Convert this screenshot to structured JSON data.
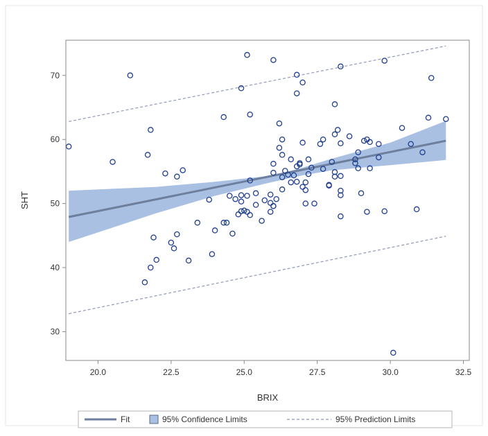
{
  "colors": {
    "fit_line": "#6d7f9c",
    "confidence_fill": "#a9c0e3",
    "prediction_line": "#8e96b8",
    "marker_stroke": "#1f3f8f",
    "frame": "#888888"
  },
  "legend": {
    "position": "bottom",
    "items": [
      {
        "label": "Fit",
        "symbol": "line"
      },
      {
        "label": "95% Confidence Limits",
        "symbol": "band"
      },
      {
        "label": "95% Prediction Limits",
        "symbol": "dashed-line"
      }
    ]
  },
  "chart_data": {
    "type": "scatter",
    "title": "",
    "xlabel": "BRIX",
    "ylabel": "SHT",
    "xlim": [
      18.9,
      32.7
    ],
    "ylim": [
      25.5,
      75.5
    ],
    "xticks": [
      20.0,
      22.5,
      25.0,
      27.5,
      30.0,
      32.5
    ],
    "yticks": [
      30,
      40,
      50,
      60,
      70
    ],
    "xtick_labels": [
      "20.0",
      "22.5",
      "25.0",
      "27.5",
      "30.0",
      "32.5"
    ],
    "ytick_labels": [
      "30",
      "40",
      "50",
      "60",
      "70"
    ],
    "grid": false,
    "fit": {
      "x_range": [
        19.0,
        31.9
      ],
      "y_start": 47.9,
      "y_end": 59.8
    },
    "confidence_band": {
      "x": [
        19.0,
        22.0,
        24.0,
        26.0,
        27.0,
        28.0,
        30.0,
        31.9
      ],
      "upper": [
        52.0,
        52.6,
        53.4,
        54.4,
        55.6,
        57.0,
        59.5,
        62.9
      ],
      "lower": [
        44.0,
        48.5,
        51.2,
        53.4,
        54.4,
        55.2,
        56.0,
        56.8
      ]
    },
    "prediction_limits": {
      "x": [
        19.0,
        31.9
      ],
      "upper": [
        62.8,
        74.6
      ],
      "lower": [
        32.8,
        44.9
      ]
    },
    "points": [
      [
        19.0,
        58.9
      ],
      [
        20.5,
        56.5
      ],
      [
        21.1,
        70.0
      ],
      [
        21.6,
        37.7
      ],
      [
        21.7,
        57.6
      ],
      [
        21.8,
        61.5
      ],
      [
        21.8,
        40.0
      ],
      [
        21.9,
        44.7
      ],
      [
        22.0,
        41.2
      ],
      [
        22.3,
        54.7
      ],
      [
        22.5,
        43.9
      ],
      [
        22.6,
        43.0
      ],
      [
        22.7,
        54.2
      ],
      [
        22.7,
        45.2
      ],
      [
        22.9,
        55.2
      ],
      [
        23.1,
        41.1
      ],
      [
        23.4,
        47.0
      ],
      [
        23.8,
        50.6
      ],
      [
        23.9,
        42.1
      ],
      [
        24.0,
        45.8
      ],
      [
        24.3,
        47.0
      ],
      [
        24.3,
        63.5
      ],
      [
        24.4,
        47.0
      ],
      [
        24.5,
        51.2
      ],
      [
        24.6,
        45.3
      ],
      [
        24.7,
        50.7
      ],
      [
        24.8,
        48.3
      ],
      [
        24.9,
        48.8
      ],
      [
        24.9,
        50.3
      ],
      [
        24.9,
        51.3
      ],
      [
        24.9,
        68.0
      ],
      [
        25.0,
        48.9
      ],
      [
        25.1,
        51.2
      ],
      [
        25.1,
        48.7
      ],
      [
        25.1,
        73.2
      ],
      [
        25.2,
        48.2
      ],
      [
        25.2,
        63.9
      ],
      [
        25.2,
        53.6
      ],
      [
        25.4,
        49.8
      ],
      [
        25.4,
        51.6
      ],
      [
        25.6,
        47.3
      ],
      [
        25.7,
        50.5
      ],
      [
        25.9,
        51.4
      ],
      [
        25.9,
        48.7
      ],
      [
        25.9,
        50.1
      ],
      [
        26.0,
        49.6
      ],
      [
        26.0,
        49.6
      ],
      [
        26.0,
        54.8
      ],
      [
        26.0,
        56.2
      ],
      [
        26.0,
        72.4
      ],
      [
        26.1,
        50.7
      ],
      [
        26.2,
        58.7
      ],
      [
        26.2,
        62.5
      ],
      [
        26.3,
        52.2
      ],
      [
        26.3,
        54.1
      ],
      [
        26.3,
        57.6
      ],
      [
        26.3,
        60.0
      ],
      [
        26.4,
        55.1
      ],
      [
        26.5,
        54.5
      ],
      [
        26.6,
        53.3
      ],
      [
        26.6,
        56.9
      ],
      [
        26.7,
        54.4
      ],
      [
        26.8,
        70.1
      ],
      [
        26.8,
        67.2
      ],
      [
        26.8,
        55.8
      ],
      [
        26.8,
        53.4
      ],
      [
        26.9,
        56.1
      ],
      [
        26.9,
        56.3
      ],
      [
        27.0,
        52.6
      ],
      [
        27.0,
        68.9
      ],
      [
        27.0,
        59.5
      ],
      [
        27.1,
        53.3
      ],
      [
        27.1,
        52.1
      ],
      [
        27.1,
        50.0
      ],
      [
        27.2,
        54.6
      ],
      [
        27.2,
        56.9
      ],
      [
        27.3,
        55.6
      ],
      [
        27.4,
        50.0
      ],
      [
        27.6,
        59.3
      ],
      [
        27.7,
        55.4
      ],
      [
        27.7,
        60.0
      ],
      [
        27.9,
        52.8
      ],
      [
        27.9,
        52.9
      ],
      [
        28.0,
        56.5
      ],
      [
        28.1,
        54.9
      ],
      [
        28.1,
        54.2
      ],
      [
        28.1,
        65.5
      ],
      [
        28.1,
        60.8
      ],
      [
        28.2,
        61.5
      ],
      [
        28.3,
        71.4
      ],
      [
        28.3,
        59.4
      ],
      [
        28.3,
        54.3
      ],
      [
        28.3,
        52.0
      ],
      [
        28.3,
        51.3
      ],
      [
        28.3,
        48.0
      ],
      [
        28.6,
        60.5
      ],
      [
        28.8,
        56.9
      ],
      [
        28.8,
        56.3
      ],
      [
        28.9,
        58.0
      ],
      [
        28.9,
        55.5
      ],
      [
        29.0,
        51.6
      ],
      [
        29.1,
        59.8
      ],
      [
        29.2,
        60.0
      ],
      [
        29.2,
        48.7
      ],
      [
        29.3,
        59.6
      ],
      [
        29.3,
        55.5
      ],
      [
        29.6,
        59.3
      ],
      [
        29.6,
        57.2
      ],
      [
        29.8,
        72.3
      ],
      [
        29.8,
        48.8
      ],
      [
        30.1,
        26.7
      ],
      [
        30.4,
        61.8
      ],
      [
        30.7,
        59.3
      ],
      [
        30.9,
        49.1
      ],
      [
        31.1,
        58.0
      ],
      [
        31.3,
        63.4
      ],
      [
        31.4,
        69.6
      ],
      [
        31.9,
        63.2
      ]
    ]
  }
}
